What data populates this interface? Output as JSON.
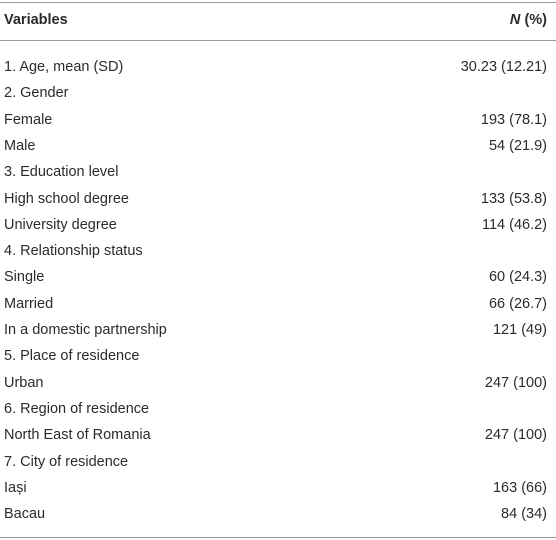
{
  "table": {
    "header": {
      "variables": "Variables",
      "n_symbol": "N",
      "n_unit": "(%)"
    },
    "rows": [
      [
        "1. Age, mean (SD)",
        "30.23 (12.21)"
      ],
      [
        "2. Gender"
      ],
      [
        "Female",
        "193 (78.1)"
      ],
      [
        "Male",
        "54 (21.9)"
      ],
      [
        "3. Education level"
      ],
      [
        "High school degree",
        "133 (53.8)"
      ],
      [
        "University degree",
        "114 (46.2)"
      ],
      [
        "4. Relationship status"
      ],
      [
        "Single",
        "60 (24.3)"
      ],
      [
        "Married",
        "66 (26.7)"
      ],
      [
        "In a domestic partnership",
        "121 (49)"
      ],
      [
        "5. Place of residence"
      ],
      [
        "Urban",
        "247 (100)"
      ],
      [
        "6. Region of residence"
      ],
      [
        "North East of Romania",
        "247 (100)"
      ],
      [
        "7. City of residence"
      ],
      [
        "Iași",
        "163 (66)"
      ],
      [
        "Bacau",
        "84 (34)"
      ]
    ]
  }
}
